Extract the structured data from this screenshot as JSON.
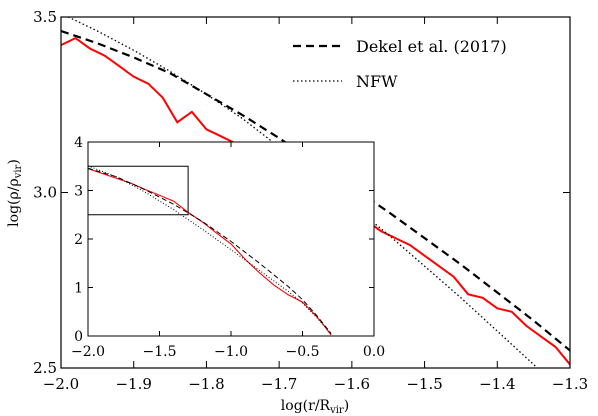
{
  "chart_data": {
    "type": "line",
    "xlabel": "log(r/R_vir)",
    "ylabel": "log(ρ/ρ_vir)",
    "xlim": [
      -2.0,
      -1.3
    ],
    "ylim": [
      2.5,
      3.5
    ],
    "xticks": [
      -2.0,
      -1.9,
      -1.8,
      -1.7,
      -1.6,
      -1.5,
      -1.4,
      -1.3
    ],
    "xtick_labels": [
      "−2.0",
      "−1.9",
      "−1.8",
      "−1.7",
      "−1.6",
      "−1.5",
      "−1.4",
      "−1.3"
    ],
    "yticks": [
      2.5,
      3.0,
      3.5
    ],
    "ytick_labels": [
      "2.5",
      "3.0",
      "3.5"
    ],
    "grid": false,
    "legend_position": "top-right",
    "legend": [
      "Dekel et al. (2017)",
      "NFW"
    ],
    "series": [
      {
        "name": "",
        "style": "solid",
        "color": "#ff0000",
        "x": [
          -2.0,
          -1.98,
          -1.96,
          -1.94,
          -1.92,
          -1.9,
          -1.88,
          -1.86,
          -1.84,
          -1.82,
          -1.8,
          -1.78,
          -1.76,
          -1.74,
          -1.72,
          -1.7,
          -1.68,
          -1.66,
          -1.64,
          -1.62,
          -1.6,
          -1.58,
          -1.56,
          -1.54,
          -1.52,
          -1.5,
          -1.48,
          -1.46,
          -1.44,
          -1.42,
          -1.4,
          -1.38,
          -1.36,
          -1.34,
          -1.32,
          -1.3
        ],
        "y": [
          3.42,
          3.44,
          3.41,
          3.39,
          3.36,
          3.33,
          3.31,
          3.27,
          3.2,
          3.23,
          3.18,
          3.16,
          3.14,
          3.12,
          3.11,
          3.08,
          3.06,
          3.04,
          3.01,
          2.98,
          2.95,
          2.92,
          2.89,
          2.87,
          2.85,
          2.82,
          2.79,
          2.76,
          2.71,
          2.7,
          2.67,
          2.66,
          2.62,
          2.59,
          2.56,
          2.51
        ]
      },
      {
        "name": "Dekel et al. (2017)",
        "style": "dashed",
        "color": "#000000",
        "x": [
          -2.0,
          -1.95,
          -1.9,
          -1.85,
          -1.8,
          -1.75,
          -1.7,
          -1.65,
          -1.6,
          -1.55,
          -1.5,
          -1.45,
          -1.4,
          -1.35,
          -1.3
        ],
        "y": [
          3.46,
          3.425,
          3.385,
          3.34,
          3.28,
          3.22,
          3.155,
          3.085,
          3.015,
          2.945,
          2.87,
          2.795,
          2.715,
          2.635,
          2.55
        ]
      },
      {
        "name": "NFW",
        "style": "dotted",
        "color": "#000000",
        "x": [
          -2.0,
          -1.95,
          -1.9,
          -1.85,
          -1.8,
          -1.75,
          -1.7,
          -1.65,
          -1.6,
          -1.55,
          -1.5,
          -1.45,
          -1.4,
          -1.35,
          -1.3
        ],
        "y": [
          3.51,
          3.46,
          3.405,
          3.345,
          3.28,
          3.21,
          3.13,
          3.05,
          2.965,
          2.88,
          2.79,
          2.7,
          2.605,
          2.51,
          2.415
        ]
      }
    ],
    "inset": {
      "type": "line",
      "xlim": [
        -2.0,
        0.0
      ],
      "ylim": [
        0,
        4
      ],
      "xticks": [
        -2.0,
        -1.5,
        -1.0,
        -0.5,
        0.0
      ],
      "xtick_labels": [
        "−2.0",
        "−1.5",
        "−1.0",
        "−0.5",
        "0.0"
      ],
      "yticks": [
        0,
        1,
        2,
        3,
        4
      ],
      "ytick_labels": [
        "0",
        "1",
        "2",
        "3",
        "4"
      ],
      "zoom_box": {
        "x": [
          -2.0,
          -1.3
        ],
        "y": [
          2.5,
          3.5
        ]
      },
      "series": [
        {
          "name": "",
          "style": "solid",
          "color": "#ff0000",
          "x": [
            -2.0,
            -1.9,
            -1.8,
            -1.7,
            -1.6,
            -1.5,
            -1.4,
            -1.3,
            -1.2,
            -1.1,
            -1.0,
            -0.9,
            -0.8,
            -0.7,
            -0.6,
            -0.5,
            -0.45,
            -0.4,
            -0.35,
            -0.3
          ],
          "y": [
            3.45,
            3.35,
            3.25,
            3.15,
            3.02,
            2.9,
            2.78,
            2.55,
            2.35,
            2.12,
            1.9,
            1.58,
            1.3,
            1.05,
            0.85,
            0.7,
            0.55,
            0.4,
            0.22,
            0.02
          ]
        },
        {
          "name": "Dekel et al. (2017)",
          "style": "dashed",
          "color": "#000000",
          "x": [
            -2.0,
            -1.8,
            -1.6,
            -1.4,
            -1.2,
            -1.0,
            -0.8,
            -0.6,
            -0.5,
            -0.4,
            -0.3
          ],
          "y": [
            3.46,
            3.28,
            3.015,
            2.715,
            2.36,
            1.95,
            1.5,
            1.02,
            0.75,
            0.42,
            0.05
          ]
        },
        {
          "name": "NFW",
          "style": "dotted",
          "color": "#000000",
          "x": [
            -2.0,
            -1.8,
            -1.6,
            -1.4,
            -1.2,
            -1.0,
            -0.8,
            -0.6,
            -0.5,
            -0.4,
            -0.3
          ],
          "y": [
            3.51,
            3.28,
            2.965,
            2.605,
            2.2,
            1.78,
            1.35,
            0.92,
            0.68,
            0.38,
            0.05
          ]
        }
      ]
    }
  }
}
